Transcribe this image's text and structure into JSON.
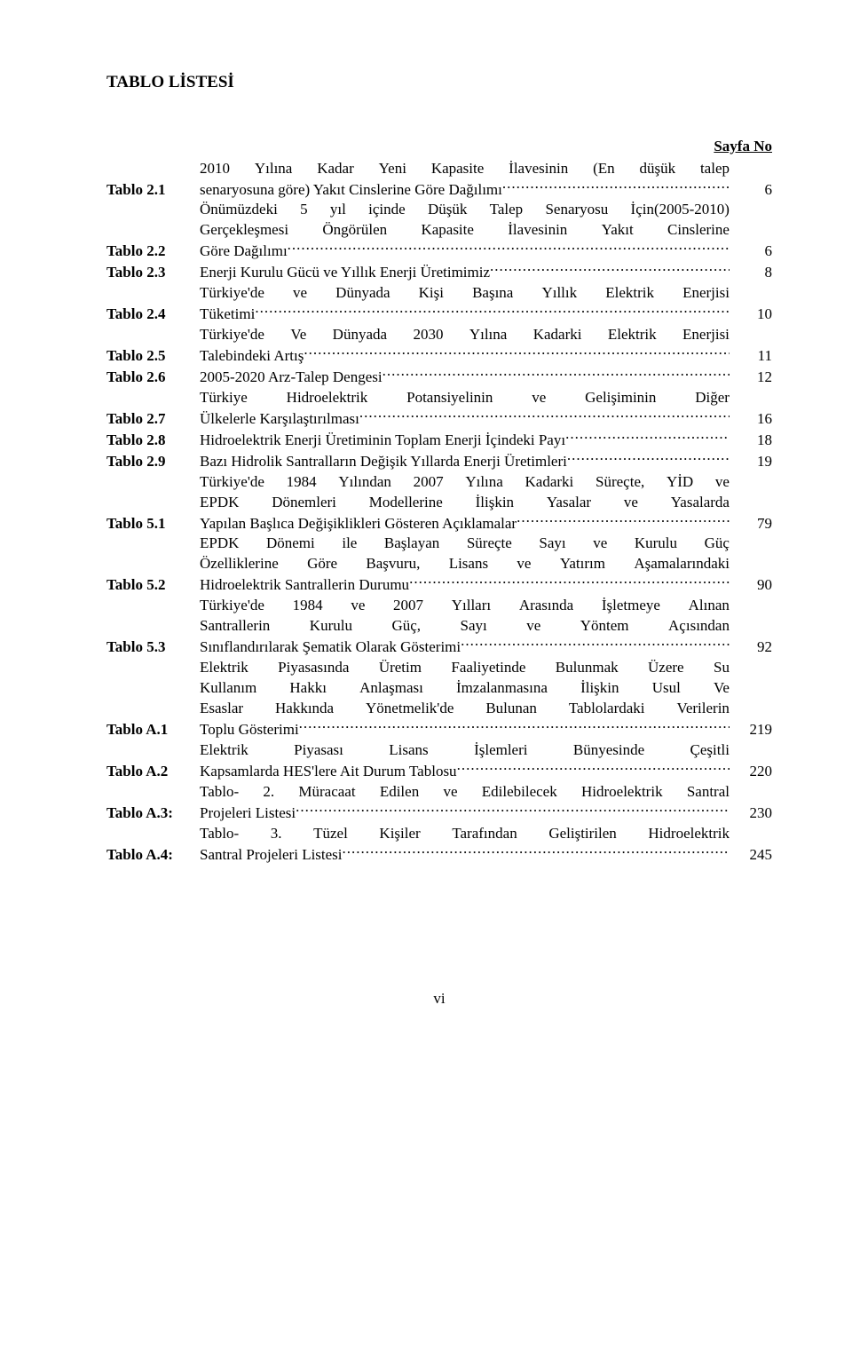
{
  "heading": "TABLO LİSTESİ",
  "page_no_label": "Sayfa No",
  "footer": "vi",
  "entries": [
    {
      "label": "Tablo 2.1",
      "pre_lines": [
        "2010 Yılına Kadar Yeni Kapasite İlavesinin (En düşük talep"
      ],
      "last_text": "senaryosuna göre) Yakıt Cinslerine Göre Dağılımı",
      "page": "6"
    },
    {
      "label": "Tablo 2.2",
      "pre_lines": [
        "Önümüzdeki 5 yıl içinde Düşük Talep Senaryosu İçin(2005-2010)",
        "Gerçekleşmesi Öngörülen Kapasite İlavesinin Yakıt Cinslerine"
      ],
      "last_text": "Göre Dağılımı",
      "page": "6"
    },
    {
      "label": "Tablo 2.3",
      "pre_lines": [],
      "last_text": "Enerji Kurulu Gücü ve Yıllık Enerji Üretimimiz",
      "page": "8"
    },
    {
      "label": "Tablo 2.4",
      "pre_lines": [
        "Türkiye'de ve Dünyada Kişi Başına Yıllık Elektrik Enerjisi"
      ],
      "last_text": "Tüketimi",
      "page": "10"
    },
    {
      "label": "Tablo 2.5",
      "pre_lines": [
        "Türkiye'de Ve Dünyada 2030 Yılına Kadarki Elektrik Enerjisi"
      ],
      "last_text": "Talebindeki Artış",
      "page": "11"
    },
    {
      "label": "Tablo 2.6",
      "pre_lines": [],
      "last_text": "2005-2020 Arz-Talep Dengesi",
      "page": "12"
    },
    {
      "label": "Tablo 2.7",
      "pre_lines": [
        "Türkiye Hidroelektrik Potansiyelinin ve Gelişiminin Diğer"
      ],
      "last_text": "Ülkelerle Karşılaştırılması",
      "page": "16"
    },
    {
      "label": "Tablo 2.8",
      "pre_lines": [],
      "last_text": "Hidroelektrik Enerji Üretiminin Toplam Enerji İçindeki Payı",
      "page": "18"
    },
    {
      "label": "Tablo 2.9",
      "pre_lines": [],
      "last_text": "Bazı Hidrolik Santralların Değişik Yıllarda Enerji Üretimleri",
      "page": "19"
    },
    {
      "label": "Tablo 5.1",
      "pre_lines": [
        "Türkiye'de 1984 Yılından 2007 Yılına Kadarki Süreçte, YİD ve",
        "EPDK Dönemleri Modellerine İlişkin Yasalar ve Yasalarda"
      ],
      "last_text": "Yapılan Başlıca Değişiklikleri Gösteren Açıklamalar",
      "page": "79"
    },
    {
      "label": "Tablo 5.2",
      "pre_lines": [
        "EPDK Dönemi ile Başlayan Süreçte Sayı ve Kurulu Güç",
        "Özelliklerine Göre Başvuru, Lisans ve Yatırım Aşamalarındaki"
      ],
      "last_text": "Hidroelektrik Santrallerin Durumu",
      "page": "90"
    },
    {
      "label": "Tablo 5.3",
      "pre_lines": [
        "Türkiye'de 1984 ve 2007 Yılları Arasında İşletmeye Alınan",
        "Santrallerin Kurulu Güç, Sayı ve Yöntem Açısından"
      ],
      "last_text": "Sınıflandırılarak Şematik Olarak Gösterimi",
      "page": "92"
    },
    {
      "label": "Tablo A.1",
      "pre_lines": [
        "Elektrik Piyasasında Üretim Faaliyetinde Bulunmak Üzere Su",
        "Kullanım Hakkı Anlaşması İmzalanmasına İlişkin Usul Ve",
        "Esaslar Hakkında Yönetmelik'de Bulunan Tablolardaki Verilerin"
      ],
      "last_text": "Toplu Gösterimi",
      "page": "219"
    },
    {
      "label": "Tablo A.2",
      "pre_lines": [
        "Elektrik Piyasası Lisans İşlemleri Bünyesinde Çeşitli"
      ],
      "last_text": "Kapsamlarda HES'lere Ait Durum Tablosu",
      "page": "220"
    },
    {
      "label": "Tablo A.3:",
      "pre_lines": [
        "Tablo- 2. Müracaat Edilen ve Edilebilecek Hidroelektrik Santral"
      ],
      "last_text": "Projeleri Listesi",
      "page": "230"
    },
    {
      "label": "Tablo A.4:",
      "pre_lines": [
        "Tablo- 3. Tüzel Kişiler Tarafından Geliştirilen Hidroelektrik"
      ],
      "last_text": "Santral Projeleri Listesi",
      "page": "245"
    }
  ]
}
